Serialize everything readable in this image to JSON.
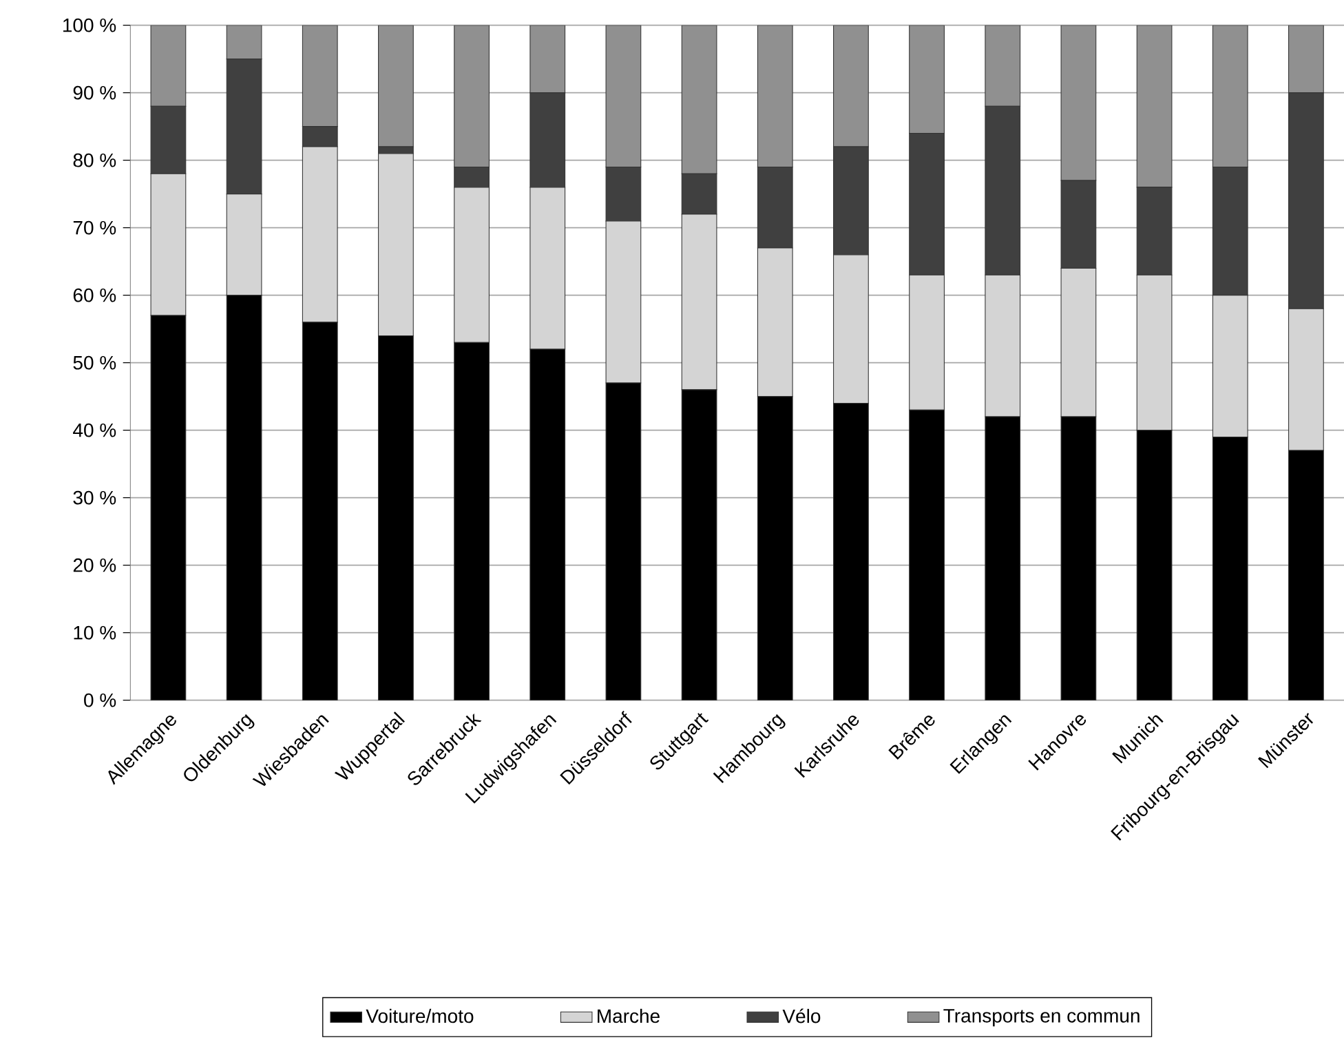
{
  "chart_data": {
    "type": "bar",
    "stacked": true,
    "categories": [
      "Allemagne",
      "Oldenburg",
      "Wiesbaden",
      "Wuppertal",
      "Sarrebruck",
      "Ludwigshafen",
      "Düsseldorf",
      "Stuttgart",
      "Hambourg",
      "Karlsruhe",
      "Brême",
      "Erlangen",
      "Hanovre",
      "Munich",
      "Fribourg-en-Brisgau",
      "Münster"
    ],
    "series": [
      {
        "name": "Voiture/moto",
        "color": "#000000",
        "values": [
          57,
          60,
          56,
          54,
          53,
          52,
          47,
          46,
          45,
          44,
          43,
          42,
          42,
          40,
          39,
          37
        ]
      },
      {
        "name": "Marche",
        "color": "#d4d4d4",
        "values": [
          21,
          15,
          26,
          27,
          23,
          24,
          24,
          26,
          22,
          22,
          20,
          21,
          22,
          23,
          21,
          21
        ]
      },
      {
        "name": "Vélo",
        "color": "#404040",
        "values": [
          10,
          20,
          3,
          1,
          3,
          14,
          8,
          6,
          12,
          16,
          21,
          25,
          13,
          13,
          19,
          32
        ]
      },
      {
        "name": "Transports en commun",
        "color": "#909090",
        "values": [
          12,
          5,
          15,
          18,
          21,
          10,
          21,
          22,
          21,
          18,
          16,
          12,
          23,
          24,
          21,
          10
        ]
      }
    ],
    "ylim": [
      0,
      100
    ],
    "yticks": [
      {
        "value": 0,
        "label": "0 %"
      },
      {
        "value": 10,
        "label": "10 %"
      },
      {
        "value": 20,
        "label": "20 %"
      },
      {
        "value": 30,
        "label": "30 %"
      },
      {
        "value": 40,
        "label": "40 %"
      },
      {
        "value": 50,
        "label": "50 %"
      },
      {
        "value": 60,
        "label": "60 %"
      },
      {
        "value": 70,
        "label": "70 %"
      },
      {
        "value": 80,
        "label": "80 %"
      },
      {
        "value": 90,
        "label": "90 %"
      },
      {
        "value": 100,
        "label": "100 %"
      }
    ],
    "grid": "y",
    "legend": "bottom"
  }
}
